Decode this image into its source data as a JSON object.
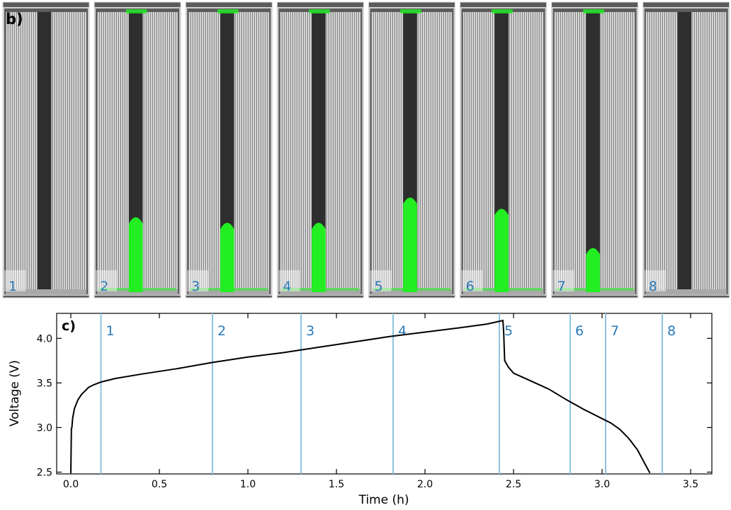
{
  "panels": {
    "top_label": "b)",
    "bottom_label": "c)",
    "frames": [
      {
        "label": "1",
        "green_level": 0.0
      },
      {
        "label": "2",
        "green_level": 0.27
      },
      {
        "label": "3",
        "green_level": 0.25
      },
      {
        "label": "4",
        "green_level": 0.25
      },
      {
        "label": "5",
        "green_level": 0.34
      },
      {
        "label": "6",
        "green_level": 0.3
      },
      {
        "label": "7",
        "green_level": 0.16
      },
      {
        "label": "8",
        "green_level": 0.0
      }
    ],
    "colors": {
      "gas": "#22ee22",
      "label": "#2a7ab9",
      "marker_line": "#8ec3e0",
      "curve": "#000000",
      "frame_bg": "#5b5b5b",
      "core": "#2e2e2e",
      "electrode": "#bdbdbd"
    }
  },
  "chart_data": {
    "type": "line",
    "xlabel": "Time (h)",
    "ylabel": "Voltage (V)",
    "xlim": [
      -0.08,
      3.62
    ],
    "ylim": [
      2.48,
      4.28
    ],
    "xticks": [
      0.0,
      0.5,
      1.0,
      1.5,
      2.0,
      2.5,
      3.0,
      3.5
    ],
    "xtick_labels": [
      "0.0",
      "0.5",
      "1.0",
      "1.5",
      "2.0",
      "2.5",
      "3.0",
      "3.5"
    ],
    "yticks": [
      2.5,
      3.0,
      3.5,
      4.0
    ],
    "ytick_labels": [
      "2.5",
      "3.0",
      "3.5",
      "4.0"
    ],
    "grid": false,
    "series": [
      {
        "x": [
          0.0,
          0.003,
          0.006,
          0.01,
          0.02,
          0.04,
          0.06,
          0.08,
          0.1,
          0.13,
          0.17,
          0.25,
          0.4,
          0.6,
          0.8,
          1.0,
          1.2,
          1.4,
          1.6,
          1.8,
          2.0,
          2.2,
          2.35,
          2.44,
          2.445,
          2.447,
          2.45,
          2.47,
          2.5,
          2.6,
          2.7,
          2.8,
          2.9,
          2.95,
          3.0,
          3.05,
          3.1,
          3.15,
          3.2,
          3.24,
          3.27
        ],
        "y": [
          2.49,
          2.99,
          3.0,
          3.1,
          3.21,
          3.31,
          3.37,
          3.41,
          3.45,
          3.48,
          3.51,
          3.55,
          3.6,
          3.66,
          3.73,
          3.79,
          3.84,
          3.9,
          3.96,
          4.02,
          4.07,
          4.12,
          4.16,
          4.2,
          4.05,
          3.9,
          3.75,
          3.68,
          3.61,
          3.52,
          3.43,
          3.31,
          3.2,
          3.15,
          3.1,
          3.05,
          2.98,
          2.88,
          2.75,
          2.6,
          2.49
        ]
      }
    ],
    "markers": [
      {
        "label": "1",
        "x": 0.17
      },
      {
        "label": "2",
        "x": 0.8
      },
      {
        "label": "3",
        "x": 1.3
      },
      {
        "label": "4",
        "x": 1.82
      },
      {
        "label": "5",
        "x": 2.42
      },
      {
        "label": "6",
        "x": 2.82
      },
      {
        "label": "7",
        "x": 3.02
      },
      {
        "label": "8",
        "x": 3.34
      }
    ]
  }
}
